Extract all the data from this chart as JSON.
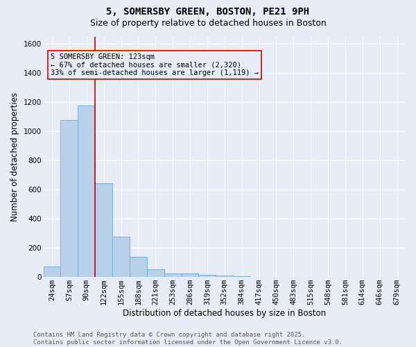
{
  "title_line1": "5, SOMERSBY GREEN, BOSTON, PE21 9PH",
  "title_line2": "Size of property relative to detached houses in Boston",
  "xlabel": "Distribution of detached houses by size in Boston",
  "ylabel": "Number of detached properties",
  "categories": [
    "24sqm",
    "57sqm",
    "90sqm",
    "122sqm",
    "155sqm",
    "188sqm",
    "221sqm",
    "253sqm",
    "286sqm",
    "319sqm",
    "352sqm",
    "384sqm",
    "417sqm",
    "450sqm",
    "483sqm",
    "515sqm",
    "548sqm",
    "581sqm",
    "614sqm",
    "646sqm",
    "679sqm"
  ],
  "values": [
    70,
    1075,
    1175,
    640,
    275,
    135,
    50,
    20,
    20,
    15,
    10,
    5,
    0,
    0,
    0,
    0,
    0,
    0,
    0,
    0,
    0
  ],
  "bar_color": "#b8d0ea",
  "bar_edge_color": "#6aaad4",
  "background_color": "#e8edf5",
  "red_line_index": 2.5,
  "annotation_text": "5 SOMERSBY GREEN: 123sqm\n← 67% of detached houses are smaller (2,320)\n33% of semi-detached houses are larger (1,119) →",
  "annotation_box_color": "#cc0000",
  "ylim": [
    0,
    1650
  ],
  "yticks": [
    0,
    200,
    400,
    600,
    800,
    1000,
    1200,
    1400,
    1600
  ],
  "footer_line1": "Contains HM Land Registry data © Crown copyright and database right 2025.",
  "footer_line2": "Contains public sector information licensed under the Open Government Licence v3.0.",
  "title_fontsize": 10,
  "subtitle_fontsize": 9,
  "axis_label_fontsize": 8.5,
  "tick_fontsize": 7.5,
  "annotation_fontsize": 7.5,
  "footer_fontsize": 6.5
}
